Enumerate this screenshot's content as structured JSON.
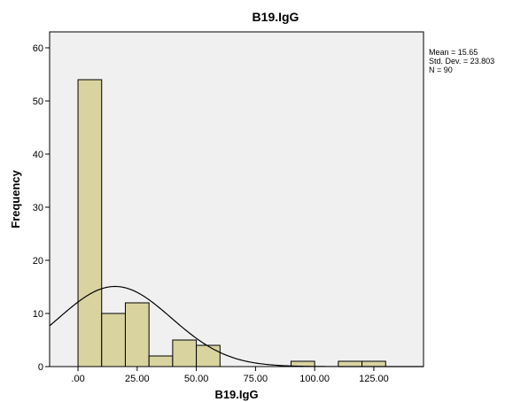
{
  "chart_data": {
    "type": "bar",
    "title": "B19.IgG",
    "xlabel": "B19.IgG",
    "ylabel": "Frequency",
    "bin_width": 10,
    "bins": [
      {
        "x0": 0,
        "x1": 10,
        "count": 54
      },
      {
        "x0": 10,
        "x1": 20,
        "count": 10
      },
      {
        "x0": 20,
        "x1": 30,
        "count": 12
      },
      {
        "x0": 30,
        "x1": 40,
        "count": 2
      },
      {
        "x0": 40,
        "x1": 50,
        "count": 5
      },
      {
        "x0": 50,
        "x1": 60,
        "count": 4
      },
      {
        "x0": 90,
        "x1": 100,
        "count": 1
      },
      {
        "x0": 110,
        "x1": 120,
        "count": 1
      },
      {
        "x0": 120,
        "x1": 130,
        "count": 1
      }
    ],
    "xlim": [
      -12,
      146
    ],
    "ylim": [
      0,
      63
    ],
    "x_ticks": [
      0,
      25,
      50,
      75,
      100,
      125
    ],
    "x_tick_labels": [
      ".00",
      "25.00",
      "50.00",
      "75.00",
      "100.00",
      "125.00"
    ],
    "y_ticks": [
      0,
      10,
      20,
      30,
      40,
      50,
      60
    ],
    "y_tick_labels": [
      "0",
      "10",
      "20",
      "30",
      "40",
      "50",
      "60"
    ],
    "normal_curve": {
      "mean": 15.65,
      "std": 23.803,
      "n": 90
    },
    "stats_text": [
      "Mean = 15.65",
      "Std. Dev. = 23.803",
      "N = 90"
    ],
    "grid": false,
    "colors": {
      "plot_background": "#f0f0f0",
      "bar_fill": "#d9d3a0",
      "bar_stroke": "#000000",
      "curve": "#000000"
    }
  }
}
